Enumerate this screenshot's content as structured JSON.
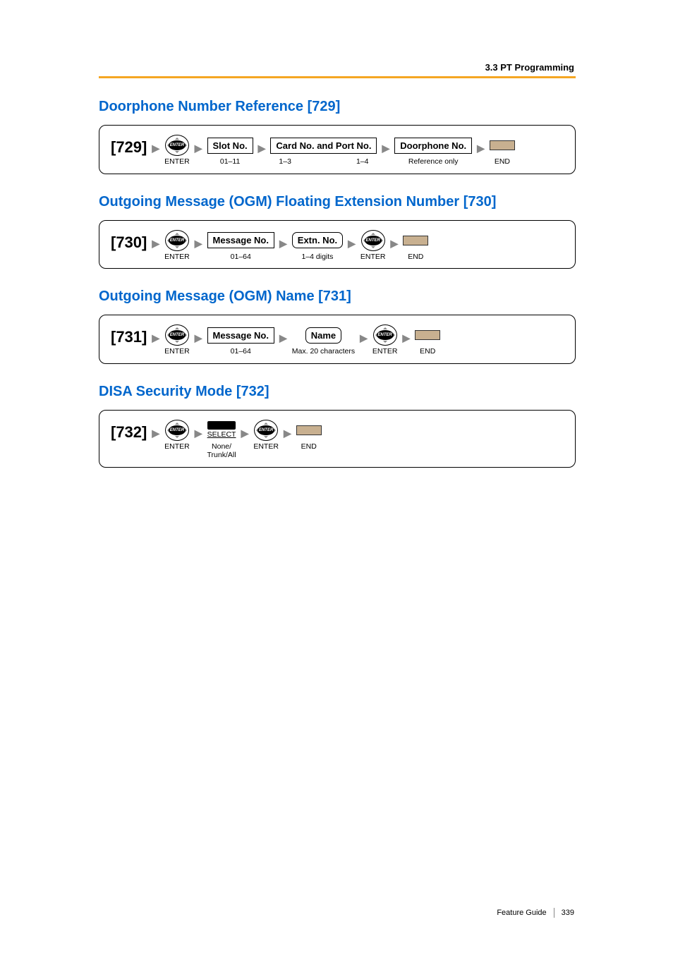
{
  "header": "3.3 PT Programming",
  "footer": {
    "label": "Feature Guide",
    "page": "339"
  },
  "sections": [
    {
      "title": "Doorphone Number Reference [729]",
      "code": "[729]",
      "steps": [
        {
          "kind": "enter",
          "sub": "ENTER"
        },
        {
          "kind": "box",
          "main": "Slot No.",
          "sub": "01–11"
        },
        {
          "kind": "box",
          "main": "Card No. and Port No.",
          "sub_left": "1–3",
          "sub_right": "1–4"
        },
        {
          "kind": "box",
          "main": "Doorphone No.",
          "sub": "Reference only"
        },
        {
          "kind": "end",
          "sub": "END"
        }
      ]
    },
    {
      "title": "Outgoing Message (OGM) Floating Extension Number [730]",
      "code": "[730]",
      "steps": [
        {
          "kind": "enter",
          "sub": "ENTER"
        },
        {
          "kind": "box",
          "main": "Message No.",
          "sub": "01–64"
        },
        {
          "kind": "rbox",
          "main": "Extn. No.",
          "sub": "1–4 digits"
        },
        {
          "kind": "enter",
          "sub": "ENTER"
        },
        {
          "kind": "end",
          "sub": "END"
        }
      ]
    },
    {
      "title": "Outgoing Message (OGM) Name [731]",
      "code": "[731]",
      "steps": [
        {
          "kind": "enter",
          "sub": "ENTER"
        },
        {
          "kind": "box",
          "main": "Message No.",
          "sub": "01–64"
        },
        {
          "kind": "rbox",
          "main": "Name",
          "sub": "Max. 20 characters"
        },
        {
          "kind": "enter",
          "sub": "ENTER"
        },
        {
          "kind": "end",
          "sub": "END"
        }
      ]
    },
    {
      "title": "DISA Security Mode [732]",
      "code": "[732]",
      "steps": [
        {
          "kind": "enter",
          "sub": "ENTER"
        },
        {
          "kind": "select",
          "sel": "SELECT",
          "sub": "None/\nTrunk/All"
        },
        {
          "kind": "enter",
          "sub": "ENTER"
        },
        {
          "kind": "end",
          "sub": "END"
        }
      ]
    }
  ]
}
